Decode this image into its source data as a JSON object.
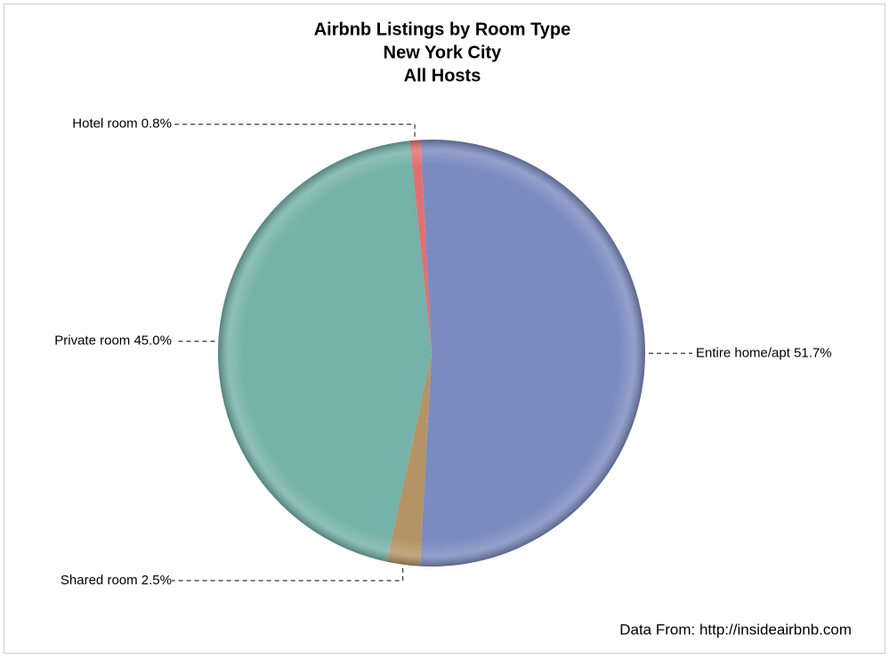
{
  "chart_data": {
    "type": "pie",
    "title": [
      "Airbnb Listings by Room Type",
      "New York City",
      "All Hosts"
    ],
    "categories": [
      "Entire home/apt",
      "Shared room",
      "Private room",
      "Hotel room"
    ],
    "values": [
      51.7,
      2.5,
      45.0,
      0.8
    ],
    "value_labels": [
      "51.7%",
      "2.5%",
      "45.0%",
      "0.8%"
    ],
    "colors": [
      "#7b8bc0",
      "#b49466",
      "#74b2aa",
      "#e07070"
    ],
    "footnote": "Data From: http://insideairbnb.com"
  }
}
